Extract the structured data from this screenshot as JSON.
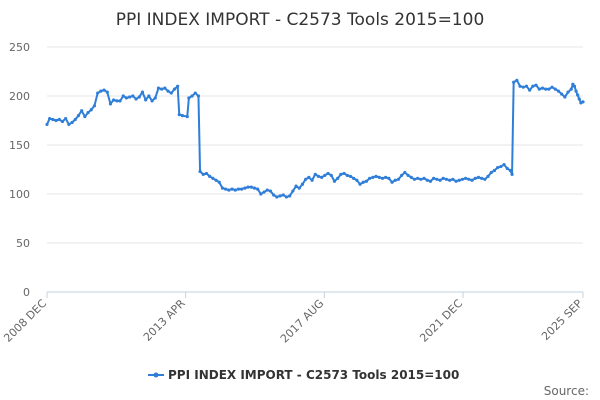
{
  "chart_data": {
    "type": "line",
    "title": "PPI INDEX IMPORT - C2573 Tools 2015=100",
    "xlabel": "",
    "ylabel": "",
    "ylim": [
      0,
      250
    ],
    "y_ticks": [
      0,
      50,
      100,
      150,
      200,
      250
    ],
    "x_ticks": [
      {
        "label": "2008 DEC",
        "x": 2008.917
      },
      {
        "label": "2013 APR",
        "x": 2013.25
      },
      {
        "label": "2017 AUG",
        "x": 2017.583
      },
      {
        "label": "2021 DEC",
        "x": 2021.917
      },
      {
        "label": "2025 SEP",
        "x": 2025.667
      }
    ],
    "xlim": [
      2008.917,
      2025.667
    ],
    "grid": "horizontal",
    "legend_position": "bottom",
    "credit": "Source:",
    "colors": {
      "series": "#2f7ed8",
      "grid": "#e6e6e6",
      "axis": "#c0d0e0"
    },
    "series": [
      {
        "name": "PPI INDEX IMPORT - C2573 Tools 2015=100",
        "points": [
          [
            2008.917,
            171
          ],
          [
            2009.0,
            177
          ],
          [
            2009.1,
            176
          ],
          [
            2009.2,
            175
          ],
          [
            2009.3,
            176
          ],
          [
            2009.4,
            174
          ],
          [
            2009.5,
            177
          ],
          [
            2009.6,
            171
          ],
          [
            2009.7,
            173
          ],
          [
            2009.8,
            176
          ],
          [
            2009.9,
            180
          ],
          [
            2010.0,
            185
          ],
          [
            2010.1,
            179
          ],
          [
            2010.2,
            183
          ],
          [
            2010.3,
            186
          ],
          [
            2010.4,
            190
          ],
          [
            2010.5,
            203
          ],
          [
            2010.6,
            205
          ],
          [
            2010.7,
            206
          ],
          [
            2010.8,
            204
          ],
          [
            2010.9,
            192
          ],
          [
            2011.0,
            196
          ],
          [
            2011.1,
            195
          ],
          [
            2011.2,
            195
          ],
          [
            2011.3,
            200
          ],
          [
            2011.4,
            198
          ],
          [
            2011.5,
            199
          ],
          [
            2011.6,
            200
          ],
          [
            2011.7,
            197
          ],
          [
            2011.8,
            199
          ],
          [
            2011.9,
            204
          ],
          [
            2012.0,
            196
          ],
          [
            2012.1,
            200
          ],
          [
            2012.2,
            195
          ],
          [
            2012.3,
            198
          ],
          [
            2012.4,
            208
          ],
          [
            2012.5,
            207
          ],
          [
            2012.6,
            208
          ],
          [
            2012.7,
            205
          ],
          [
            2012.8,
            203
          ],
          [
            2012.9,
            207
          ],
          [
            2013.0,
            210
          ],
          [
            2013.05,
            181
          ],
          [
            2013.15,
            180
          ],
          [
            2013.3,
            179
          ],
          [
            2013.35,
            198
          ],
          [
            2013.45,
            200
          ],
          [
            2013.55,
            203
          ],
          [
            2013.65,
            200
          ],
          [
            2013.7,
            123
          ],
          [
            2013.8,
            120
          ],
          [
            2013.9,
            121
          ],
          [
            2014.0,
            118
          ],
          [
            2014.1,
            116
          ],
          [
            2014.2,
            114
          ],
          [
            2014.3,
            112
          ],
          [
            2014.4,
            106
          ],
          [
            2014.5,
            105
          ],
          [
            2014.6,
            104
          ],
          [
            2014.7,
            105
          ],
          [
            2014.8,
            104
          ],
          [
            2014.9,
            105
          ],
          [
            2015.0,
            105
          ],
          [
            2015.1,
            106
          ],
          [
            2015.2,
            107
          ],
          [
            2015.3,
            107
          ],
          [
            2015.4,
            106
          ],
          [
            2015.5,
            105
          ],
          [
            2015.6,
            100
          ],
          [
            2015.7,
            102
          ],
          [
            2015.8,
            104
          ],
          [
            2015.9,
            103
          ],
          [
            2016.0,
            99
          ],
          [
            2016.1,
            97
          ],
          [
            2016.2,
            98
          ],
          [
            2016.3,
            99
          ],
          [
            2016.4,
            97
          ],
          [
            2016.5,
            98
          ],
          [
            2016.6,
            103
          ],
          [
            2016.7,
            108
          ],
          [
            2016.8,
            106
          ],
          [
            2016.9,
            110
          ],
          [
            2017.0,
            115
          ],
          [
            2017.1,
            117
          ],
          [
            2017.2,
            114
          ],
          [
            2017.3,
            120
          ],
          [
            2017.4,
            118
          ],
          [
            2017.5,
            117
          ],
          [
            2017.6,
            119
          ],
          [
            2017.7,
            121
          ],
          [
            2017.8,
            119
          ],
          [
            2017.9,
            113
          ],
          [
            2018.0,
            116
          ],
          [
            2018.1,
            120
          ],
          [
            2018.2,
            121
          ],
          [
            2018.3,
            119
          ],
          [
            2018.4,
            118
          ],
          [
            2018.5,
            116
          ],
          [
            2018.6,
            114
          ],
          [
            2018.7,
            110
          ],
          [
            2018.8,
            112
          ],
          [
            2018.9,
            113
          ],
          [
            2019.0,
            116
          ],
          [
            2019.1,
            117
          ],
          [
            2019.2,
            118
          ],
          [
            2019.3,
            117
          ],
          [
            2019.4,
            116
          ],
          [
            2019.5,
            117
          ],
          [
            2019.6,
            116
          ],
          [
            2019.7,
            112
          ],
          [
            2019.8,
            114
          ],
          [
            2019.9,
            115
          ],
          [
            2020.0,
            119
          ],
          [
            2020.1,
            122
          ],
          [
            2020.2,
            119
          ],
          [
            2020.3,
            117
          ],
          [
            2020.4,
            115
          ],
          [
            2020.5,
            116
          ],
          [
            2020.6,
            115
          ],
          [
            2020.7,
            116
          ],
          [
            2020.8,
            114
          ],
          [
            2020.9,
            113
          ],
          [
            2021.0,
            116
          ],
          [
            2021.1,
            115
          ],
          [
            2021.2,
            114
          ],
          [
            2021.3,
            116
          ],
          [
            2021.4,
            115
          ],
          [
            2021.5,
            114
          ],
          [
            2021.6,
            115
          ],
          [
            2021.7,
            113
          ],
          [
            2021.8,
            114
          ],
          [
            2021.9,
            115
          ],
          [
            2022.0,
            116
          ],
          [
            2022.1,
            115
          ],
          [
            2022.2,
            114
          ],
          [
            2022.3,
            116
          ],
          [
            2022.4,
            117
          ],
          [
            2022.5,
            116
          ],
          [
            2022.6,
            115
          ],
          [
            2022.7,
            118
          ],
          [
            2022.8,
            122
          ],
          [
            2022.9,
            124
          ],
          [
            2023.0,
            127
          ],
          [
            2023.1,
            128
          ],
          [
            2023.2,
            130
          ],
          [
            2023.3,
            126
          ],
          [
            2023.4,
            124
          ],
          [
            2023.45,
            120
          ],
          [
            2023.5,
            214
          ],
          [
            2023.6,
            216
          ],
          [
            2023.7,
            210
          ],
          [
            2023.8,
            209
          ],
          [
            2023.9,
            210
          ],
          [
            2024.0,
            206
          ],
          [
            2024.1,
            210
          ],
          [
            2024.2,
            211
          ],
          [
            2024.3,
            207
          ],
          [
            2024.4,
            208
          ],
          [
            2024.5,
            207
          ],
          [
            2024.6,
            207
          ],
          [
            2024.7,
            209
          ],
          [
            2024.8,
            207
          ],
          [
            2024.9,
            205
          ],
          [
            2025.0,
            202
          ],
          [
            2025.1,
            199
          ],
          [
            2025.2,
            204
          ],
          [
            2025.3,
            207
          ],
          [
            2025.35,
            212
          ],
          [
            2025.4,
            210
          ],
          [
            2025.45,
            205
          ],
          [
            2025.5,
            201
          ],
          [
            2025.55,
            197
          ],
          [
            2025.6,
            193
          ],
          [
            2025.667,
            194
          ]
        ]
      }
    ]
  }
}
